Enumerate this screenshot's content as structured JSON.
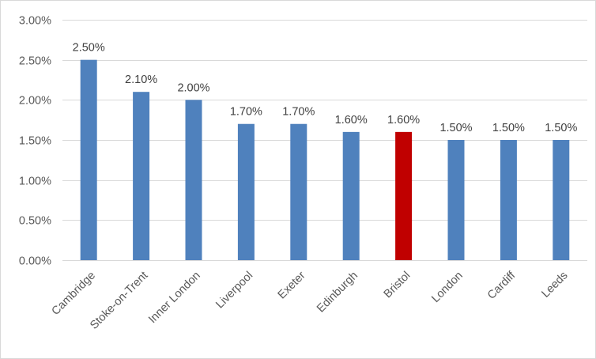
{
  "chart_data": {
    "type": "bar",
    "title": "",
    "xlabel": "",
    "ylabel": "",
    "categories": [
      "Cambridge",
      "Stoke-on-Trent",
      "Inner London",
      "Liverpool",
      "Exeter",
      "Edinburgh",
      "Bristol",
      "London",
      "Cardiff",
      "Leeds"
    ],
    "values": [
      2.5,
      2.1,
      2.0,
      1.7,
      1.7,
      1.6,
      1.6,
      1.5,
      1.5,
      1.5
    ],
    "data_labels": [
      "2.50%",
      "2.10%",
      "2.00%",
      "1.70%",
      "1.70%",
      "1.60%",
      "1.60%",
      "1.50%",
      "1.50%",
      "1.50%"
    ],
    "ylim": [
      0,
      3.0
    ],
    "yticks": [
      0,
      0.5,
      1.0,
      1.5,
      2.0,
      2.5,
      3.0
    ],
    "ytick_labels": [
      "0.00%",
      "0.50%",
      "1.00%",
      "1.50%",
      "2.00%",
      "2.50%",
      "3.00%"
    ],
    "grid": true,
    "legend": "none",
    "colors": {
      "default_bar": "#4f81bd",
      "highlight_bar": "#c00000",
      "highlight_category": "Bristol"
    }
  }
}
